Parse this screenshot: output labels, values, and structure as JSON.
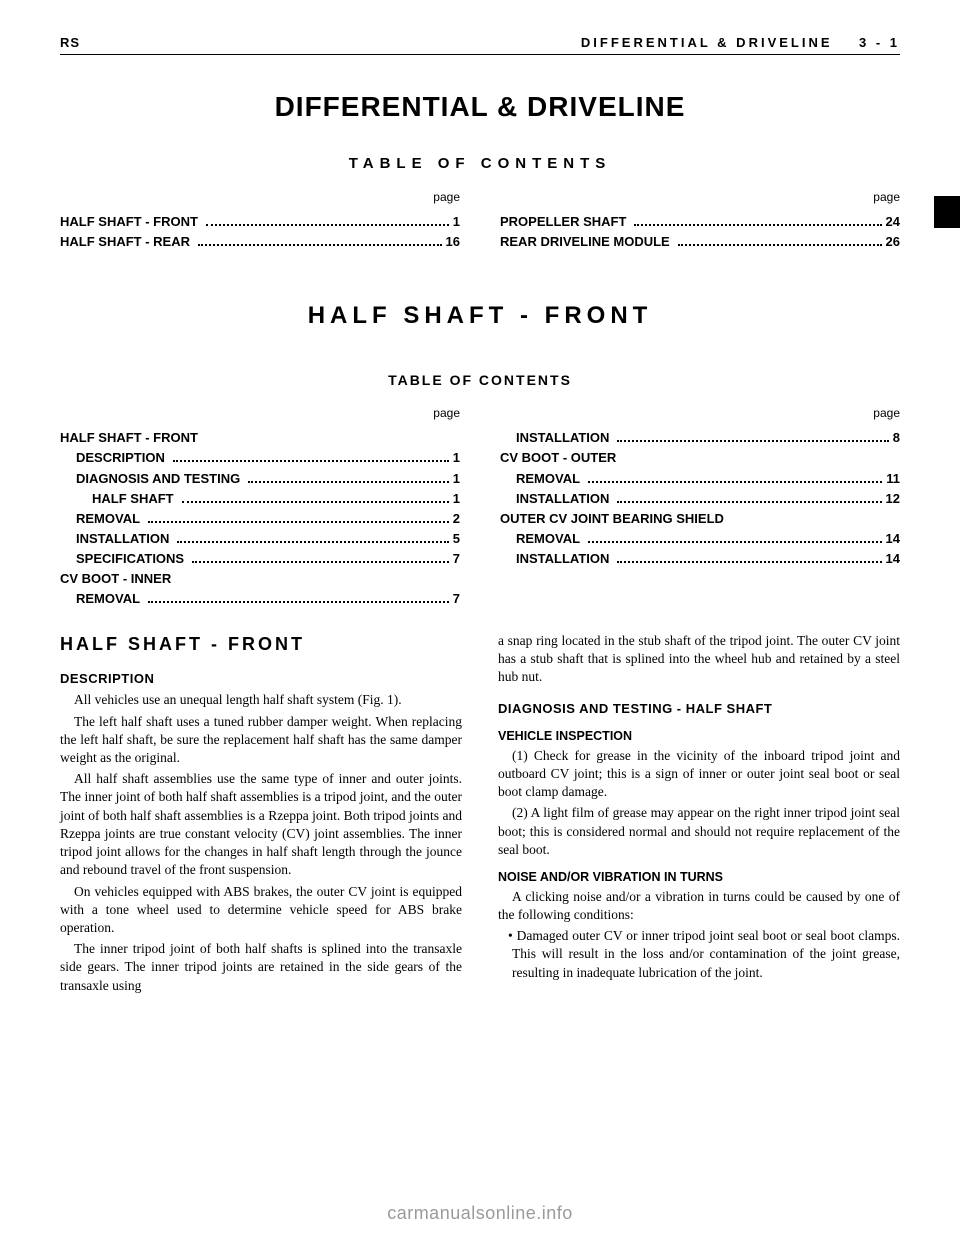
{
  "header": {
    "left": "RS",
    "right_section": "DIFFERENTIAL & DRIVELINE",
    "right_page": "3 - 1"
  },
  "doc_title": "DIFFERENTIAL & DRIVELINE",
  "toc_heading": "TABLE OF CONTENTS",
  "page_label": "page",
  "toc_main": {
    "left": [
      {
        "label": "HALF SHAFT - FRONT",
        "page": "1"
      },
      {
        "label": "HALF SHAFT - REAR",
        "page": "16"
      }
    ],
    "right": [
      {
        "label": "PROPELLER SHAFT",
        "page": "24"
      },
      {
        "label": "REAR DRIVELINE MODULE",
        "page": "26"
      }
    ]
  },
  "section_title": "HALF SHAFT - FRONT",
  "toc_sub_heading": "TABLE OF CONTENTS",
  "toc_sub": {
    "left": [
      {
        "label": "HALF SHAFT - FRONT",
        "page": "",
        "indent": 0,
        "nodots": true
      },
      {
        "label": "DESCRIPTION",
        "page": "1",
        "indent": 1
      },
      {
        "label": "DIAGNOSIS AND TESTING",
        "page": "1",
        "indent": 1
      },
      {
        "label": "HALF SHAFT",
        "page": "1",
        "indent": 2
      },
      {
        "label": "REMOVAL",
        "page": "2",
        "indent": 1
      },
      {
        "label": "INSTALLATION",
        "page": "5",
        "indent": 1
      },
      {
        "label": "SPECIFICATIONS",
        "page": "7",
        "indent": 1
      },
      {
        "label": "CV BOOT - INNER",
        "page": "",
        "indent": 0,
        "nodots": true
      },
      {
        "label": "REMOVAL",
        "page": "7",
        "indent": 1
      }
    ],
    "right": [
      {
        "label": "INSTALLATION",
        "page": "8",
        "indent": 1
      },
      {
        "label": "CV BOOT - OUTER",
        "page": "",
        "indent": 0,
        "nodots": true
      },
      {
        "label": "REMOVAL",
        "page": "11",
        "indent": 1
      },
      {
        "label": "INSTALLATION",
        "page": "12",
        "indent": 1
      },
      {
        "label": "OUTER CV JOINT BEARING SHIELD",
        "page": "",
        "indent": 0,
        "nodots": true
      },
      {
        "label": "REMOVAL",
        "page": "14",
        "indent": 1
      },
      {
        "label": "INSTALLATION",
        "page": "14",
        "indent": 1
      }
    ]
  },
  "body": {
    "left": {
      "h2": "HALF SHAFT - FRONT",
      "h3": "DESCRIPTION",
      "p1": "All vehicles use an unequal length half shaft system (Fig. 1).",
      "p2": "The left half shaft uses a tuned rubber damper weight. When replacing the left half shaft, be sure the replacement half shaft has the same damper weight as the original.",
      "p3": "All half shaft assemblies use the same type of inner and outer joints. The inner joint of both half shaft assemblies is a tripod joint, and the outer joint of both half shaft assemblies is a Rzeppa joint. Both tripod joints and Rzeppa joints are true constant velocity (CV) joint assemblies. The inner tripod joint allows for the changes in half shaft length through the jounce and rebound travel of the front suspension.",
      "p4": "On vehicles equipped with ABS brakes, the outer CV joint is equipped with a tone wheel used to determine vehicle speed for ABS brake operation.",
      "p5": "The inner tripod joint of both half shafts is splined into the transaxle side gears. The inner tripod joints are retained in the side gears of the transaxle using"
    },
    "right": {
      "p1": "a snap ring located in the stub shaft of the tripod joint. The outer CV joint has a stub shaft that is splined into the wheel hub and retained by a steel hub nut.",
      "h3a": "DIAGNOSIS AND TESTING - HALF SHAFT",
      "h4a": "VEHICLE INSPECTION",
      "p2": "(1) Check for grease in the vicinity of the inboard tripod joint and outboard CV joint; this is a sign of inner or outer joint seal boot or seal boot clamp damage.",
      "p3": "(2) A light film of grease may appear on the right inner tripod joint seal boot; this is considered normal and should not require replacement of the seal boot.",
      "h4b": "NOISE AND/OR VIBRATION IN TURNS",
      "p4": "A clicking noise and/or a vibration in turns could be caused by one of the following conditions:",
      "b1": "• Damaged outer CV or inner tripod joint seal boot or seal boot clamps. This will result in the loss and/or contamination of the joint grease, resulting in inadequate lubrication of the joint."
    }
  },
  "footer": "carmanualsonline.info"
}
